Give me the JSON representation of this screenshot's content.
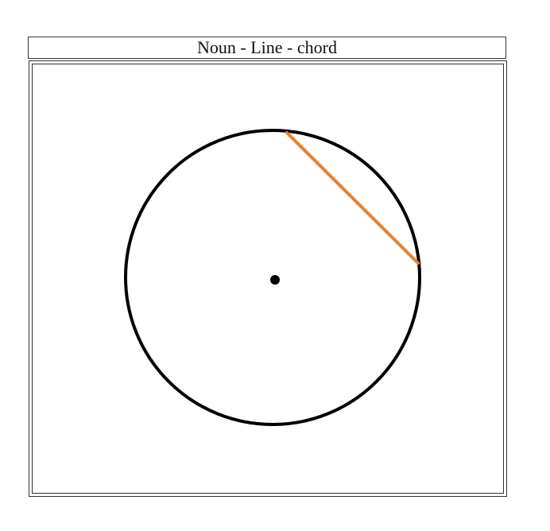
{
  "title": "Noun - Line - chord",
  "colors": {
    "circle": "#000000",
    "chord": "#f47b2b",
    "center": "#000000",
    "frame": "#333333"
  }
}
